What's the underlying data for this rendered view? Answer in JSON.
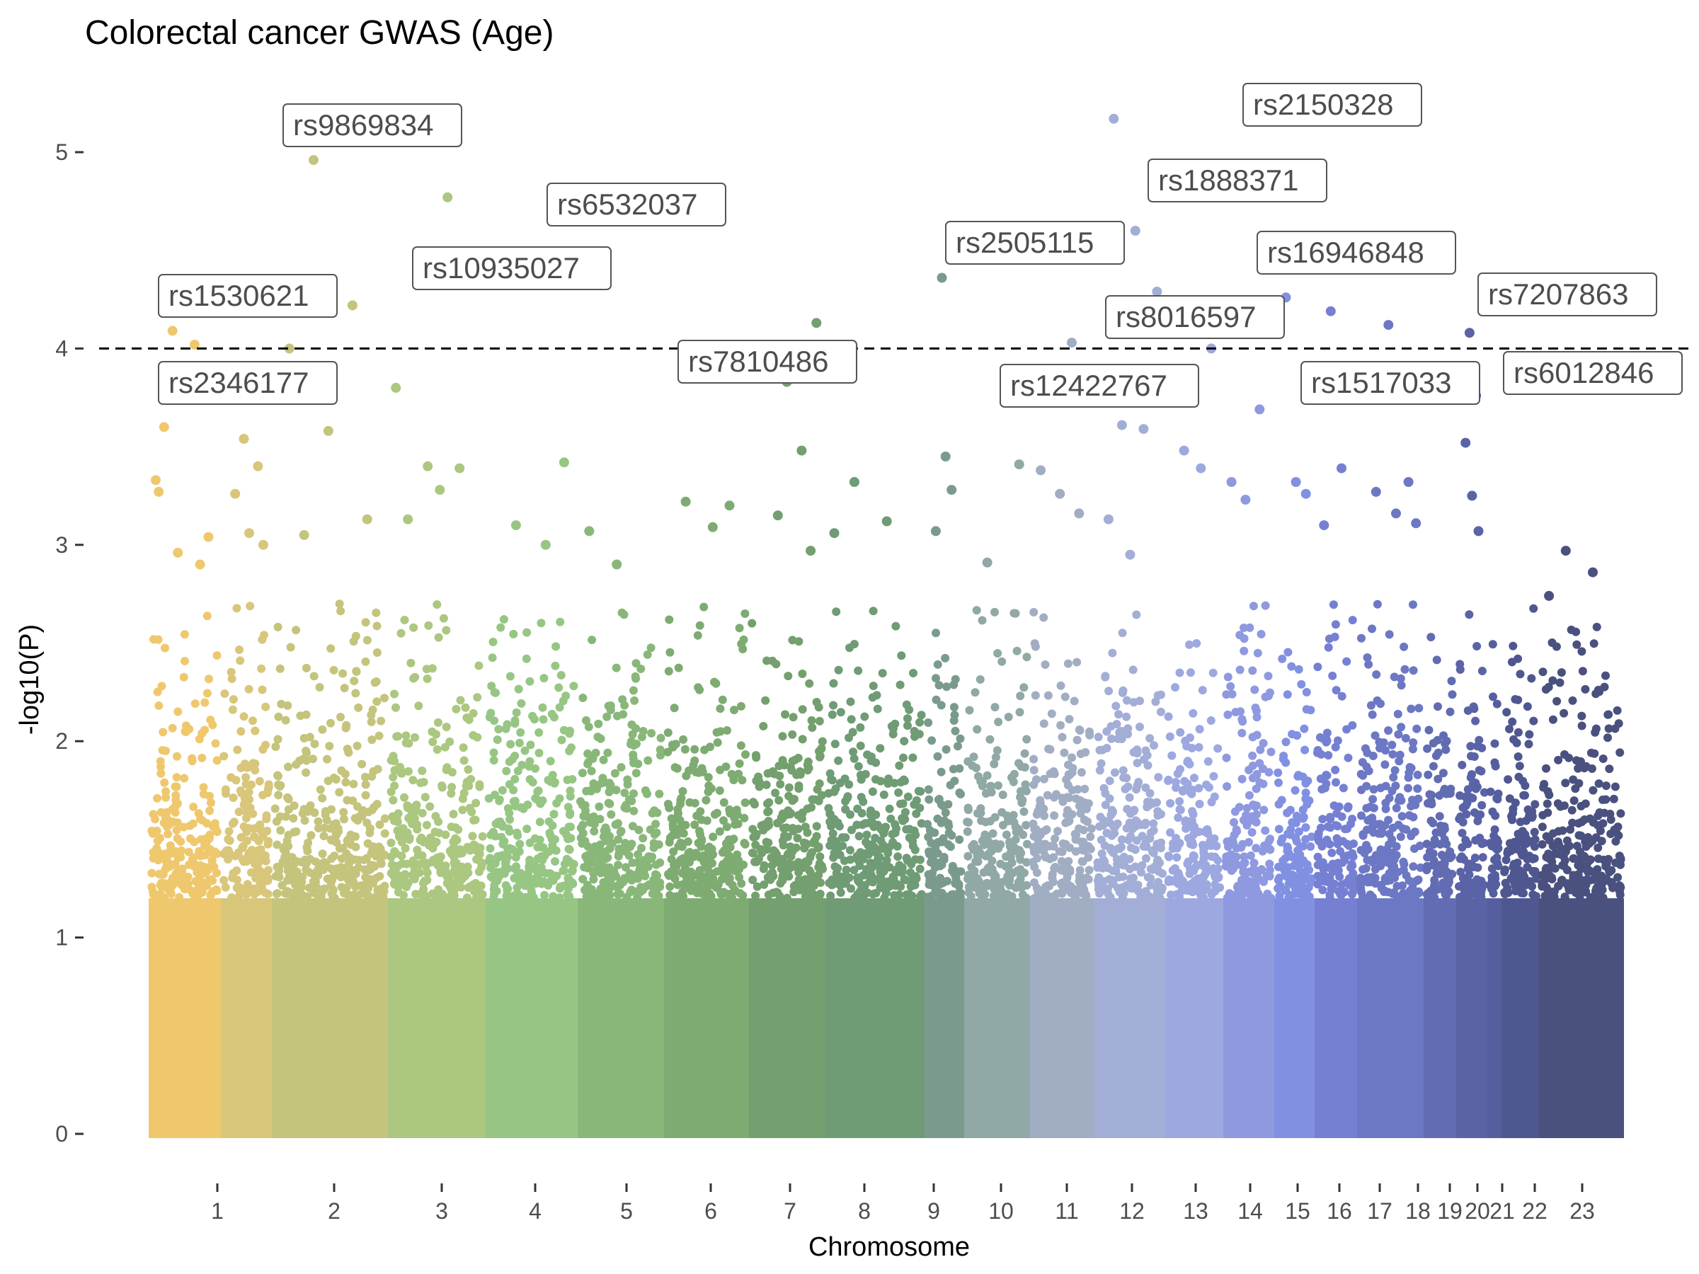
{
  "chart_data": {
    "type": "scatter",
    "subtype": "manhattan",
    "title": "Colorectal cancer GWAS (Age)",
    "xlabel": "Chromosome",
    "ylabel": "-log10(P)",
    "ylim": [
      0,
      5.3
    ],
    "yticks": [
      0,
      1,
      2,
      3,
      4,
      5
    ],
    "threshold": 4,
    "grid": false,
    "legend": "none",
    "chromosomes": [
      {
        "label": "1",
        "color": "#EFC86E"
      },
      {
        "label": "2",
        "color": "#D8C67A"
      },
      {
        "label": "3",
        "color": "#C4C47C"
      },
      {
        "label": "4",
        "color": "#ABC780"
      },
      {
        "label": "5",
        "color": "#97C684"
      },
      {
        "label": "6",
        "color": "#89B77A"
      },
      {
        "label": "7",
        "color": "#7EAB72"
      },
      {
        "label": "8",
        "color": "#749F6E"
      },
      {
        "label": "9",
        "color": "#6F9B75"
      },
      {
        "label": "10",
        "color": "#7A9B8C"
      },
      {
        "label": "11",
        "color": "#90A8A6"
      },
      {
        "label": "12",
        "color": "#A1ADC3"
      },
      {
        "label": "13",
        "color": "#A3AED6"
      },
      {
        "label": "14",
        "color": "#9CA8DF"
      },
      {
        "label": "15",
        "color": "#8E99E0"
      },
      {
        "label": "16",
        "color": "#8290E2"
      },
      {
        "label": "17",
        "color": "#7680D2"
      },
      {
        "label": "18",
        "color": "#6C78C4"
      },
      {
        "label": "19",
        "color": "#626CB2"
      },
      {
        "label": "20",
        "color": "#5A63A6"
      },
      {
        "label": "21",
        "color": "#555E9E"
      },
      {
        "label": "22",
        "color": "#4F5790"
      },
      {
        "label": "23",
        "color": "#4A517F"
      }
    ],
    "points": [
      {
        "chr": "1",
        "y": 3.33
      },
      {
        "chr": "1",
        "y": 2.96
      },
      {
        "chr": "1",
        "y": 2.9
      },
      {
        "chr": "1",
        "y": 3.6
      },
      {
        "chr": "1",
        "y": 3.85
      },
      {
        "chr": "1",
        "y": 3.04
      },
      {
        "chr": "1",
        "y": 4.09
      },
      {
        "chr": "1",
        "y": 4.02
      },
      {
        "chr": "1",
        "y": 3.27
      },
      {
        "chr": "2",
        "y": 3.54
      },
      {
        "chr": "2",
        "y": 3.4
      },
      {
        "chr": "2",
        "y": 3.26
      },
      {
        "chr": "2",
        "y": 3.06
      },
      {
        "chr": "2",
        "y": 3.0
      },
      {
        "chr": "3",
        "y": 4.96
      },
      {
        "chr": "3",
        "y": 4.22
      },
      {
        "chr": "3",
        "y": 4.0
      },
      {
        "chr": "3",
        "y": 3.58
      },
      {
        "chr": "3",
        "y": 3.13
      },
      {
        "chr": "3",
        "y": 3.05
      },
      {
        "chr": "4",
        "y": 4.77
      },
      {
        "chr": "4",
        "y": 3.8
      },
      {
        "chr": "4",
        "y": 3.4
      },
      {
        "chr": "4",
        "y": 3.39
      },
      {
        "chr": "4",
        "y": 3.13
      },
      {
        "chr": "4",
        "y": 3.28
      },
      {
        "chr": "5",
        "y": 3.42
      },
      {
        "chr": "5",
        "y": 3.1
      },
      {
        "chr": "5",
        "y": 3.0
      },
      {
        "chr": "6",
        "y": 3.07
      },
      {
        "chr": "6",
        "y": 2.9
      },
      {
        "chr": "7",
        "y": 3.2
      },
      {
        "chr": "7",
        "y": 3.22
      },
      {
        "chr": "7",
        "y": 3.09
      },
      {
        "chr": "8",
        "y": 4.13
      },
      {
        "chr": "8",
        "y": 3.15
      },
      {
        "chr": "8",
        "y": 3.48
      },
      {
        "chr": "8",
        "y": 3.99
      },
      {
        "chr": "8",
        "y": 3.83
      },
      {
        "chr": "8",
        "y": 2.97
      },
      {
        "chr": "9",
        "y": 3.32
      },
      {
        "chr": "9",
        "y": 3.12
      },
      {
        "chr": "9",
        "y": 3.06
      },
      {
        "chr": "10",
        "y": 4.36
      },
      {
        "chr": "10",
        "y": 3.28
      },
      {
        "chr": "10",
        "y": 3.07
      },
      {
        "chr": "10",
        "y": 3.45
      },
      {
        "chr": "11",
        "y": 3.41
      },
      {
        "chr": "11",
        "y": 2.91
      },
      {
        "chr": "12",
        "y": 4.03
      },
      {
        "chr": "12",
        "y": 3.38
      },
      {
        "chr": "12",
        "y": 3.26
      },
      {
        "chr": "12",
        "y": 3.16
      },
      {
        "chr": "13",
        "y": 5.17
      },
      {
        "chr": "13",
        "y": 4.6
      },
      {
        "chr": "13",
        "y": 4.29
      },
      {
        "chr": "13",
        "y": 3.61
      },
      {
        "chr": "13",
        "y": 3.59
      },
      {
        "chr": "13",
        "y": 3.13
      },
      {
        "chr": "13",
        "y": 2.95
      },
      {
        "chr": "14",
        "y": 4.0
      },
      {
        "chr": "14",
        "y": 3.48
      },
      {
        "chr": "14",
        "y": 3.39
      },
      {
        "chr": "15",
        "y": 3.32
      },
      {
        "chr": "15",
        "y": 3.23
      },
      {
        "chr": "15",
        "y": 3.69
      },
      {
        "chr": "16",
        "y": 4.26
      },
      {
        "chr": "16",
        "y": 3.32
      },
      {
        "chr": "16",
        "y": 3.26
      },
      {
        "chr": "17",
        "y": 4.19
      },
      {
        "chr": "17",
        "y": 3.39
      },
      {
        "chr": "17",
        "y": 3.1
      },
      {
        "chr": "18",
        "y": 4.12
      },
      {
        "chr": "18",
        "y": 3.32
      },
      {
        "chr": "18",
        "y": 3.27
      },
      {
        "chr": "18",
        "y": 3.16
      },
      {
        "chr": "18",
        "y": 3.11
      },
      {
        "chr": "20",
        "y": 4.08
      },
      {
        "chr": "20",
        "y": 3.76
      },
      {
        "chr": "20",
        "y": 3.52
      },
      {
        "chr": "20",
        "y": 3.25
      },
      {
        "chr": "20",
        "y": 3.07
      },
      {
        "chr": "23",
        "y": 2.97
      },
      {
        "chr": "23",
        "y": 2.86
      },
      {
        "chr": "23",
        "y": 2.74
      }
    ],
    "annotations": [
      {
        "label": "rs1530621",
        "chr": "1",
        "y": 4.09
      },
      {
        "label": "rs2346177",
        "chr": "1",
        "y": 4.02
      },
      {
        "label": "rs9869834",
        "chr": "3",
        "y": 4.96
      },
      {
        "label": "rs10935027",
        "chr": "3",
        "y": 4.22
      },
      {
        "label": "rs6532037",
        "chr": "4",
        "y": 4.77
      },
      {
        "label": "rs7810486",
        "chr": "8",
        "y": 4.13
      },
      {
        "label": "rs2505115",
        "chr": "10",
        "y": 4.36
      },
      {
        "label": "rs2150328",
        "chr": "13",
        "y": 5.17
      },
      {
        "label": "rs1888371",
        "chr": "13",
        "y": 4.6
      },
      {
        "label": "rs8016597",
        "chr": "14",
        "y": 4.0
      },
      {
        "label": "rs12422767",
        "chr": "12",
        "y": 4.03
      },
      {
        "label": "rs16946848",
        "chr": "16",
        "y": 4.26
      },
      {
        "label": "rs7207863",
        "chr": "17",
        "y": 4.19
      },
      {
        "label": "rs1517033",
        "chr": "18",
        "y": 4.12
      },
      {
        "label": "rs6012846",
        "chr": "20",
        "y": 4.08
      }
    ]
  }
}
